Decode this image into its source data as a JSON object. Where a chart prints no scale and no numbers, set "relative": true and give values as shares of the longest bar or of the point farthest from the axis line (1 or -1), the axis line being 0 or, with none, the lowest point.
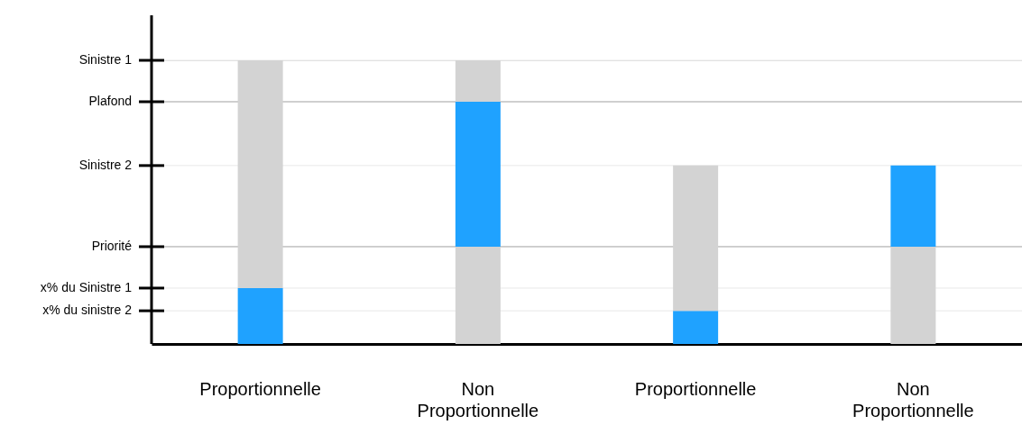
{
  "chart_data": {
    "type": "bar",
    "relative": true,
    "stacked": true,
    "grid": false,
    "categories": [
      "Proportionnelle",
      "Non Proportionnelle",
      "Proportionnelle",
      "Non Proportionnelle"
    ],
    "series": [
      {
        "color": "#d3d3d3",
        "values": [
          null,
          0.343,
          null,
          0.343
        ]
      },
      {
        "color": "#1fa2ff",
        "values": [
          0.197,
          0.511,
          0.117,
          0.286
        ]
      },
      {
        "color": "#d3d3d3",
        "values": [
          0.803,
          0.146,
          0.512,
          null
        ]
      }
    ],
    "ref_lines": [
      {
        "axis": "y",
        "value": 1,
        "label": "Sinistre 1",
        "color": "#e8e8e8"
      },
      {
        "axis": "y",
        "value": 0.854,
        "label": "Plafond",
        "color": "#a0a0a0"
      },
      {
        "axis": "y",
        "value": 0.629,
        "label": "Sinistre 2",
        "color": "#e8e8e8"
      },
      {
        "axis": "y",
        "value": 0.343,
        "label": "Priorité",
        "color": "#a0a0a0"
      },
      {
        "axis": "y",
        "value": 0.197,
        "label": "x% du Sinistre 1",
        "color": "#e8e8e8"
      },
      {
        "axis": "y",
        "value": 0.117,
        "label": "x% du sinistre 2",
        "color": "#e8e8e8"
      }
    ]
  }
}
